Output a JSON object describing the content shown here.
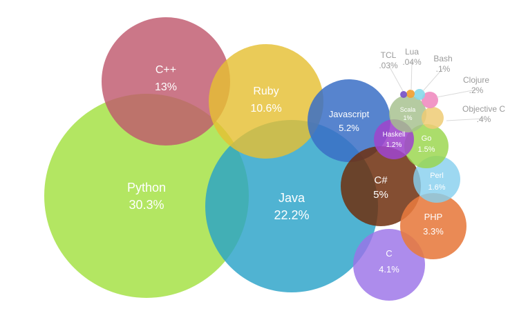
{
  "chart_data": {
    "type": "bubble",
    "title": "",
    "series": [
      {
        "name": "Python",
        "value": "30.3%",
        "color": "#a2e040"
      },
      {
        "name": "Java",
        "value": "22.2%",
        "color": "#2aa2c8"
      },
      {
        "name": "C++",
        "value": "13%",
        "color": "#c0596e"
      },
      {
        "name": "Ruby",
        "value": "10.6%",
        "color": "#e5c033"
      },
      {
        "name": "Javascript",
        "value": "5.2%",
        "color": "#3a6fc6"
      },
      {
        "name": "C#",
        "value": "5%",
        "color": "#6e2f0e"
      },
      {
        "name": "C",
        "value": "4.1%",
        "color": "#9b73e8"
      },
      {
        "name": "PHP",
        "value": "3.3%",
        "color": "#e77a3e"
      },
      {
        "name": "Perl",
        "value": "1.6%",
        "color": "#88cfee"
      },
      {
        "name": "Go",
        "value": "1.5%",
        "color": "#98d64a"
      },
      {
        "name": "Haskell",
        "value": "1.2%",
        "color": "#9e45cc"
      },
      {
        "name": "Scala",
        "value": "1%",
        "color": "#a5c08c"
      },
      {
        "name": "Objective C",
        "value": ".4%",
        "color": "#eecb74"
      },
      {
        "name": "Clojure",
        "value": ".2%",
        "color": "#f08cc0"
      },
      {
        "name": "Bash",
        "value": ".1%",
        "color": "#86d8ea"
      },
      {
        "name": "Lua",
        "value": ".04%",
        "color": "#f0a238"
      },
      {
        "name": "TCL",
        "value": ".03%",
        "color": "#7a55c8"
      }
    ]
  }
}
